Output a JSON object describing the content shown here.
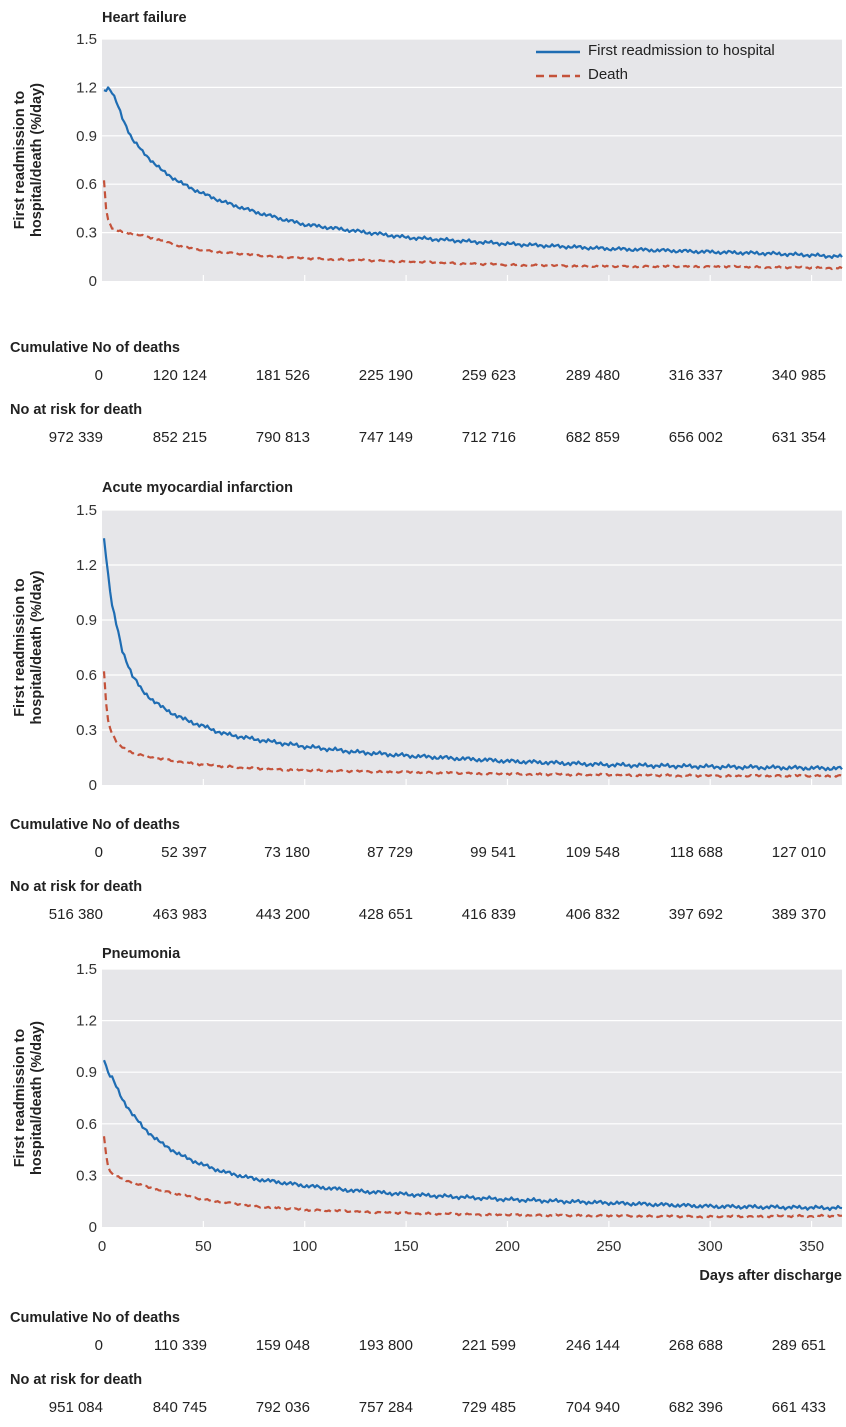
{
  "colors": {
    "readmission": "#1f6db3",
    "death": "#c4523a",
    "plot_bg": "#e6e6e9",
    "grid": "#ffffff"
  },
  "legend": {
    "readmission": "First readmission to hospital",
    "death": "Death"
  },
  "row_labels": {
    "deaths": "Cumulative No of deaths",
    "at_risk": "No at risk for death"
  },
  "chart_data": [
    {
      "type": "line",
      "title": "Heart failure",
      "ylabel_line1": "First readmission to",
      "ylabel_line2": "hospital/death (%/day)",
      "ylim": [
        0,
        1.5
      ],
      "yticks": [
        0,
        0.3,
        0.6,
        0.9,
        1.2,
        1.5
      ],
      "yticklabels": [
        "0",
        "0.3",
        "0.6",
        "0.9",
        "1.2",
        "1.5"
      ],
      "xlim": [
        0,
        365
      ],
      "series": [
        {
          "name": "First readmission to hospital",
          "x": [
            1,
            3,
            5,
            8,
            10,
            15,
            20,
            30,
            40,
            50,
            60,
            75,
            90,
            100,
            125,
            150,
            175,
            200,
            250,
            300,
            330,
            350,
            365
          ],
          "values": [
            1.18,
            1.2,
            1.17,
            1.08,
            1.01,
            0.88,
            0.8,
            0.68,
            0.6,
            0.54,
            0.49,
            0.43,
            0.38,
            0.35,
            0.31,
            0.27,
            0.25,
            0.23,
            0.2,
            0.18,
            0.17,
            0.16,
            0.15
          ]
        },
        {
          "name": "Death",
          "x": [
            1,
            2,
            3,
            5,
            8,
            12,
            20,
            30,
            40,
            50,
            75,
            100,
            150,
            200,
            250,
            300,
            365
          ],
          "values": [
            0.62,
            0.45,
            0.38,
            0.33,
            0.31,
            0.3,
            0.28,
            0.25,
            0.21,
            0.19,
            0.16,
            0.14,
            0.12,
            0.1,
            0.09,
            0.09,
            0.08
          ]
        }
      ],
      "cumulative_deaths": [
        "0",
        "120 124",
        "181 526",
        "225 190",
        "259 623",
        "289 480",
        "316 337",
        "340 985"
      ],
      "at_risk": [
        "972 339",
        "852 215",
        "790 813",
        "747 149",
        "712 716",
        "682 859",
        "656 002",
        "631 354"
      ]
    },
    {
      "type": "line",
      "title": "Acute myocardial infarction",
      "ylabel_line1": "First readmission to",
      "ylabel_line2": "hospital/death (%/day)",
      "ylim": [
        0,
        1.5
      ],
      "yticks": [
        0,
        0.3,
        0.6,
        0.9,
        1.2,
        1.5
      ],
      "yticklabels": [
        "0",
        "0.3",
        "0.6",
        "0.9",
        "1.2",
        "1.5"
      ],
      "xlim": [
        0,
        365
      ],
      "series": [
        {
          "name": "First readmission to hospital",
          "x": [
            1,
            3,
            5,
            8,
            10,
            15,
            20,
            30,
            40,
            50,
            60,
            75,
            100,
            125,
            150,
            200,
            250,
            300,
            365
          ],
          "values": [
            1.35,
            1.15,
            0.98,
            0.83,
            0.73,
            0.6,
            0.51,
            0.42,
            0.36,
            0.32,
            0.28,
            0.25,
            0.21,
            0.18,
            0.16,
            0.13,
            0.11,
            0.1,
            0.09
          ]
        },
        {
          "name": "Death",
          "x": [
            1,
            2,
            3,
            5,
            8,
            12,
            20,
            30,
            50,
            75,
            100,
            150,
            200,
            250,
            300,
            365
          ],
          "values": [
            0.62,
            0.45,
            0.35,
            0.28,
            0.22,
            0.19,
            0.16,
            0.14,
            0.11,
            0.09,
            0.08,
            0.07,
            0.06,
            0.055,
            0.05,
            0.05
          ]
        }
      ],
      "cumulative_deaths": [
        "0",
        "52 397",
        "73 180",
        "87 729",
        "99 541",
        "109 548",
        "118 688",
        "127 010"
      ],
      "at_risk": [
        "516 380",
        "463 983",
        "443 200",
        "428 651",
        "416 839",
        "406 832",
        "397 692",
        "389 370"
      ]
    },
    {
      "type": "line",
      "title": "Pneumonia",
      "ylabel_line1": "First readmission to",
      "ylabel_line2": "hospital/death (%/day)",
      "xlabel": "Days after discharge",
      "ylim": [
        0,
        1.5
      ],
      "yticks": [
        0,
        0.3,
        0.6,
        0.9,
        1.2,
        1.5
      ],
      "yticklabels": [
        "0",
        "0.3",
        "0.6",
        "0.9",
        "1.2",
        "1.5"
      ],
      "xlim": [
        0,
        365
      ],
      "xticks": [
        0,
        50,
        100,
        150,
        200,
        250,
        300,
        350
      ],
      "xticklabels": [
        "0",
        "50",
        "100",
        "150",
        "200",
        "250",
        "300",
        "350"
      ],
      "series": [
        {
          "name": "First readmission to hospital",
          "x": [
            1,
            3,
            5,
            8,
            10,
            15,
            20,
            30,
            40,
            50,
            60,
            75,
            100,
            125,
            150,
            200,
            250,
            300,
            365
          ],
          "values": [
            0.98,
            0.9,
            0.87,
            0.79,
            0.74,
            0.66,
            0.58,
            0.48,
            0.41,
            0.36,
            0.32,
            0.28,
            0.24,
            0.21,
            0.19,
            0.16,
            0.14,
            0.12,
            0.11
          ]
        },
        {
          "name": "Death",
          "x": [
            1,
            2,
            3,
            5,
            8,
            12,
            20,
            30,
            50,
            75,
            100,
            150,
            200,
            250,
            300,
            365
          ],
          "values": [
            0.53,
            0.42,
            0.35,
            0.31,
            0.29,
            0.27,
            0.24,
            0.21,
            0.16,
            0.12,
            0.1,
            0.08,
            0.07,
            0.065,
            0.06,
            0.065
          ]
        }
      ],
      "cumulative_deaths": [
        "0",
        "110 339",
        "159 048",
        "193 800",
        "221 599",
        "246 144",
        "268 688",
        "289 651"
      ],
      "at_risk": [
        "951 084",
        "840 745",
        "792 036",
        "757 284",
        "729 485",
        "704 940",
        "682 396",
        "661 433"
      ]
    }
  ]
}
